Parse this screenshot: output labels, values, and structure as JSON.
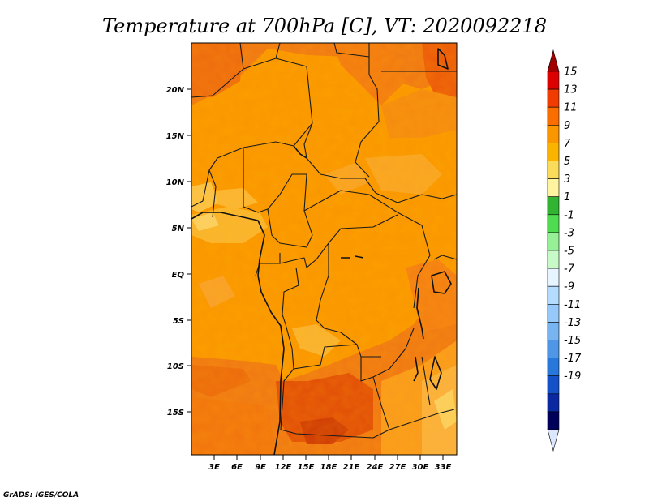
{
  "title": "Temperature at 700hPa [C], VT: 2020092218",
  "credit": "GrADS: IGES/COLA",
  "map": {
    "lat_labels": [
      "20N",
      "15N",
      "10N",
      "5N",
      "EQ",
      "5S",
      "10S",
      "15S"
    ],
    "lon_labels": [
      "3E",
      "6E",
      "9E",
      "12E",
      "15E",
      "18E",
      "21E",
      "24E",
      "27E",
      "30E",
      "33E"
    ]
  },
  "colorbar": {
    "labels": [
      "15",
      "13",
      "11",
      "9",
      "7",
      "5",
      "3",
      "1",
      "-1",
      "-3",
      "-5",
      "-7",
      "-9",
      "-11",
      "-13",
      "-15",
      "-17",
      "-19"
    ],
    "colors": [
      "#a00000",
      "#dc0000",
      "#f03c00",
      "#fa6e00",
      "#fa9600",
      "#fab400",
      "#fadc5a",
      "#fff5a0",
      "#32b432",
      "#50dc50",
      "#96f096",
      "#c8fac8",
      "#e6f5ff",
      "#b4dcff",
      "#96c8fa",
      "#78b4f0",
      "#5096e6",
      "#2878dc",
      "#1450c8",
      "#0a28a0",
      "#00005a",
      "#dce6ff"
    ]
  }
}
